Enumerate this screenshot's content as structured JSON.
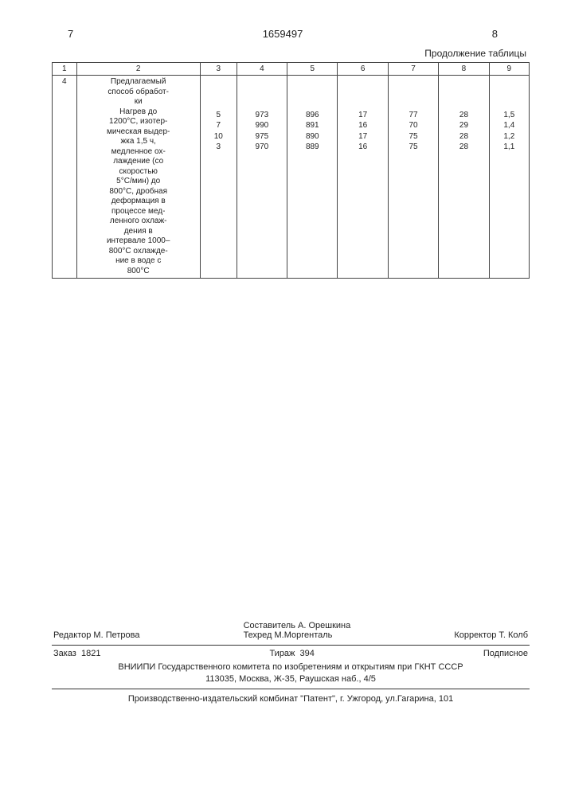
{
  "header": {
    "left_page": "7",
    "doc_number": "1659497",
    "right_page": "8",
    "continuation": "Продолжение таблицы"
  },
  "table": {
    "headers": [
      "1",
      "2",
      "3",
      "4",
      "5",
      "6",
      "7",
      "8",
      "9"
    ],
    "row_id": "4",
    "description": "Предлагаемый способ обработки\nНагрев до 1200°С, изотермическая выдержка 1,5 ч, медленное охлаждение (со скоростью 5°С/мин) до 800°С, дробная деформация в процессе медленного охлаждения в интервале 1000–800°С охлаждение в воде с 800°С",
    "columns": {
      "c3": [
        "5",
        "7",
        "10",
        "3"
      ],
      "c4": [
        "973",
        "990",
        "975",
        "970"
      ],
      "c5": [
        "896",
        "891",
        "890",
        "889"
      ],
      "c6": [
        "17",
        "16",
        "17",
        "16"
      ],
      "c7": [
        "77",
        "70",
        "75",
        "75"
      ],
      "c8": [
        "28",
        "29",
        "28",
        "28"
      ],
      "c9": [
        "1,5",
        "1,4",
        "1,2",
        "1,1"
      ]
    }
  },
  "footer": {
    "editor_label": "Редактор",
    "editor_name": "М. Петрова",
    "compiler_label": "Составитель",
    "compiler_name": "А. Орешкина",
    "tech_label": "Техред",
    "tech_name": "М.Моргенталь",
    "corrector_label": "Корректор",
    "corrector_name": "Т. Колб",
    "order_label": "Заказ",
    "order_num": "1821",
    "print_label": "Тираж",
    "print_num": "394",
    "subscription": "Подписное",
    "publisher_line1": "ВНИИПИ Государственного комитета по изобретениям и открытиям при ГКНТ СССР",
    "publisher_line2": "113035, Москва, Ж-35, Раушская наб., 4/5",
    "press": "Производственно-издательский комбинат \"Патент\", г. Ужгород, ул.Гагарина, 101"
  }
}
